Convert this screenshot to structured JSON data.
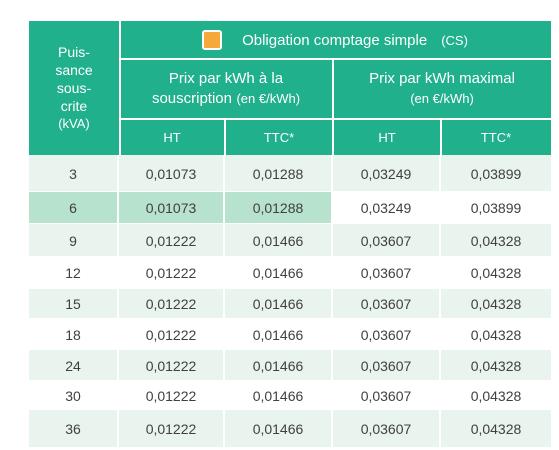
{
  "table": {
    "colors": {
      "header_bg": "#20b08c",
      "row_alt_bg": "#e9f4ee",
      "highlight_bg": "#b6e2ce",
      "swatch": "#f7a83a"
    },
    "col_puissance": [
      "Puis-",
      "sance",
      "sous-",
      "crite",
      "(kVA)"
    ],
    "group_title": "Obligation comptage simple",
    "group_suffix": "(CS)",
    "sub1_line1": "Prix par kWh à  la",
    "sub1_line2": "souscription",
    "sub1_unit": "(en €/kWh)",
    "sub2_line1": "Prix par kWh maximal",
    "sub2_unit": "(en €/kWh)",
    "leaf_headers": [
      "HT",
      "TTC*",
      "HT",
      "TTC*"
    ],
    "rows": [
      [
        "3",
        "0,01073",
        "0,01288",
        "0,03249",
        "0,03899"
      ],
      [
        "6",
        "0,01073",
        "0,01288",
        "0,03249",
        "0,03899"
      ],
      [
        "9",
        "0,01222",
        "0,01466",
        "0,03607",
        "0,04328"
      ],
      [
        "12",
        "0,01222",
        "0,01466",
        "0,03607",
        "0,04328"
      ],
      [
        "15",
        "0,01222",
        "0,01466",
        "0,03607",
        "0,04328"
      ],
      [
        "18",
        "0,01222",
        "0,01466",
        "0,03607",
        "0,04328"
      ],
      [
        "24",
        "0,01222",
        "0,01466",
        "0,03607",
        "0,04328"
      ],
      [
        "30",
        "0,01222",
        "0,01466",
        "0,03607",
        "0,04328"
      ],
      [
        "36",
        "0,01222",
        "0,01466",
        "0,03607",
        "0,04328"
      ]
    ]
  }
}
